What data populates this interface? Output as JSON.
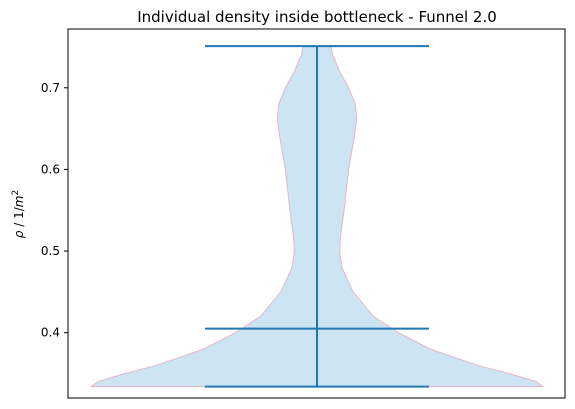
{
  "chart_data": {
    "type": "violin",
    "title": "Individual density inside bottleneck - Funnel 2.0",
    "xlabel": "",
    "ylabel": "ρ / 1/m²",
    "ylabel_parts": {
      "main": "ρ / 1/",
      "var": "m",
      "sup": "2"
    },
    "ylim": [
      0.32,
      0.772
    ],
    "yticks": [
      0.4,
      0.5,
      0.6,
      0.7
    ],
    "yticklabels": [
      "0.4",
      "0.5",
      "0.6",
      "0.7"
    ],
    "grid": false,
    "legend": "none",
    "colors": {
      "body_fill": "#cde4f2",
      "body_edge": "#e8b4c8",
      "lines": "#1f77b4",
      "axes": "#000000"
    },
    "violin": {
      "min": 0.334,
      "max": 0.751,
      "median": 0.405,
      "density_profile": [
        {
          "y": 0.334,
          "width": 1.0
        },
        {
          "y": 0.34,
          "width": 0.97
        },
        {
          "y": 0.35,
          "width": 0.85
        },
        {
          "y": 0.36,
          "width": 0.71
        },
        {
          "y": 0.38,
          "width": 0.5
        },
        {
          "y": 0.4,
          "width": 0.36
        },
        {
          "y": 0.42,
          "width": 0.25
        },
        {
          "y": 0.45,
          "width": 0.16
        },
        {
          "y": 0.48,
          "width": 0.11
        },
        {
          "y": 0.5,
          "width": 0.1
        },
        {
          "y": 0.52,
          "width": 0.105
        },
        {
          "y": 0.55,
          "width": 0.12
        },
        {
          "y": 0.6,
          "width": 0.14
        },
        {
          "y": 0.64,
          "width": 0.165
        },
        {
          "y": 0.66,
          "width": 0.175
        },
        {
          "y": 0.68,
          "width": 0.17
        },
        {
          "y": 0.7,
          "width": 0.14
        },
        {
          "y": 0.72,
          "width": 0.1
        },
        {
          "y": 0.74,
          "width": 0.07
        },
        {
          "y": 0.751,
          "width": 0.06
        }
      ]
    }
  }
}
